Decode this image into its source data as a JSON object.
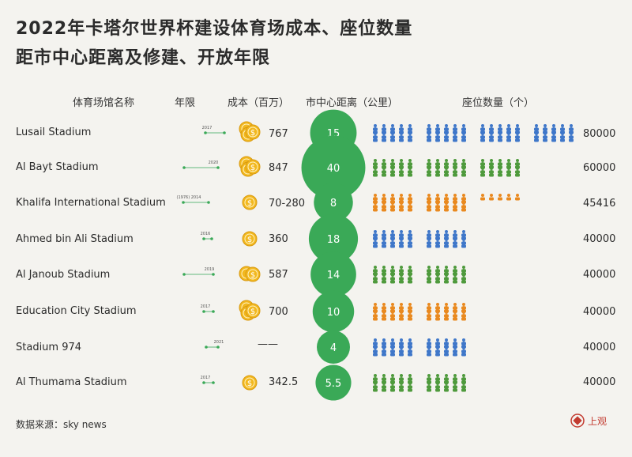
{
  "title_line1": "2022年卡塔尔世界杯建设体育场成本、座位数量",
  "title_line2": "距市中心距离及修建、开放年限",
  "headers": {
    "name": "体育场馆名称",
    "years": "年限",
    "cost": "成本（百万）",
    "distance": "市中心距离（公里）",
    "seats": "座位数量（个）"
  },
  "source": "数据来源：sky news",
  "logo_text": "上观",
  "colors": {
    "blue": "#3f77c9",
    "green": "#4e9a3c",
    "orange": "#e9891f",
    "distance_circle": "#3aa957",
    "coin": "#f2b81f",
    "timeline": "#3aa957"
  },
  "chart_data": {
    "type": "table",
    "columns": [
      "stadium",
      "years",
      "cost_million",
      "distance_km",
      "seats"
    ],
    "rows": [
      {
        "stadium": "Lusail Stadium",
        "year_label": "2017",
        "cost": "767",
        "distance_label": "15",
        "distance": 15,
        "seats_label": "80000",
        "seats": 80000,
        "seat_color": "blue",
        "coins": 3
      },
      {
        "stadium": "Al Bayt Stadium",
        "year_label": "2020",
        "cost": "847",
        "distance_label": "40",
        "distance": 40,
        "seats_label": "60000",
        "seats": 60000,
        "seat_color": "green",
        "coins": 3
      },
      {
        "stadium": "Khalifa International Stadium",
        "year_label": "(1976) 2014",
        "cost": "70-280",
        "distance_label": "8",
        "distance": 8,
        "seats_label": "45416",
        "seats": 45416,
        "seat_color": "orange",
        "coins": 1
      },
      {
        "stadium": "Ahmed bin Ali Stadium",
        "year_label": "2016",
        "cost": "360",
        "distance_label": "18",
        "distance": 18,
        "seats_label": "40000",
        "seats": 40000,
        "seat_color": "blue",
        "coins": 1
      },
      {
        "stadium": "Al Janoub Stadium",
        "year_label": "2019",
        "cost": "587",
        "distance_label": "14",
        "distance": 14,
        "seats_label": "40000",
        "seats": 40000,
        "seat_color": "green",
        "coins": 2
      },
      {
        "stadium": "Education City Stadium",
        "year_label": "2017",
        "cost": "700",
        "distance_label": "10",
        "distance": 10,
        "seats_label": "40000",
        "seats": 40000,
        "seat_color": "orange",
        "coins": 3
      },
      {
        "stadium": "Stadium 974",
        "year_label": "2021",
        "cost": "——",
        "distance_label": "4",
        "distance": 4,
        "seats_label": "40000",
        "seats": 40000,
        "seat_color": "blue",
        "coins": 0
      },
      {
        "stadium": "Al Thumama Stadium",
        "year_label": "2017",
        "cost": "342.5",
        "distance_label": "5.5",
        "distance": 5.5,
        "seats_label": "40000",
        "seats": 40000,
        "seat_color": "green",
        "coins": 1
      }
    ]
  }
}
